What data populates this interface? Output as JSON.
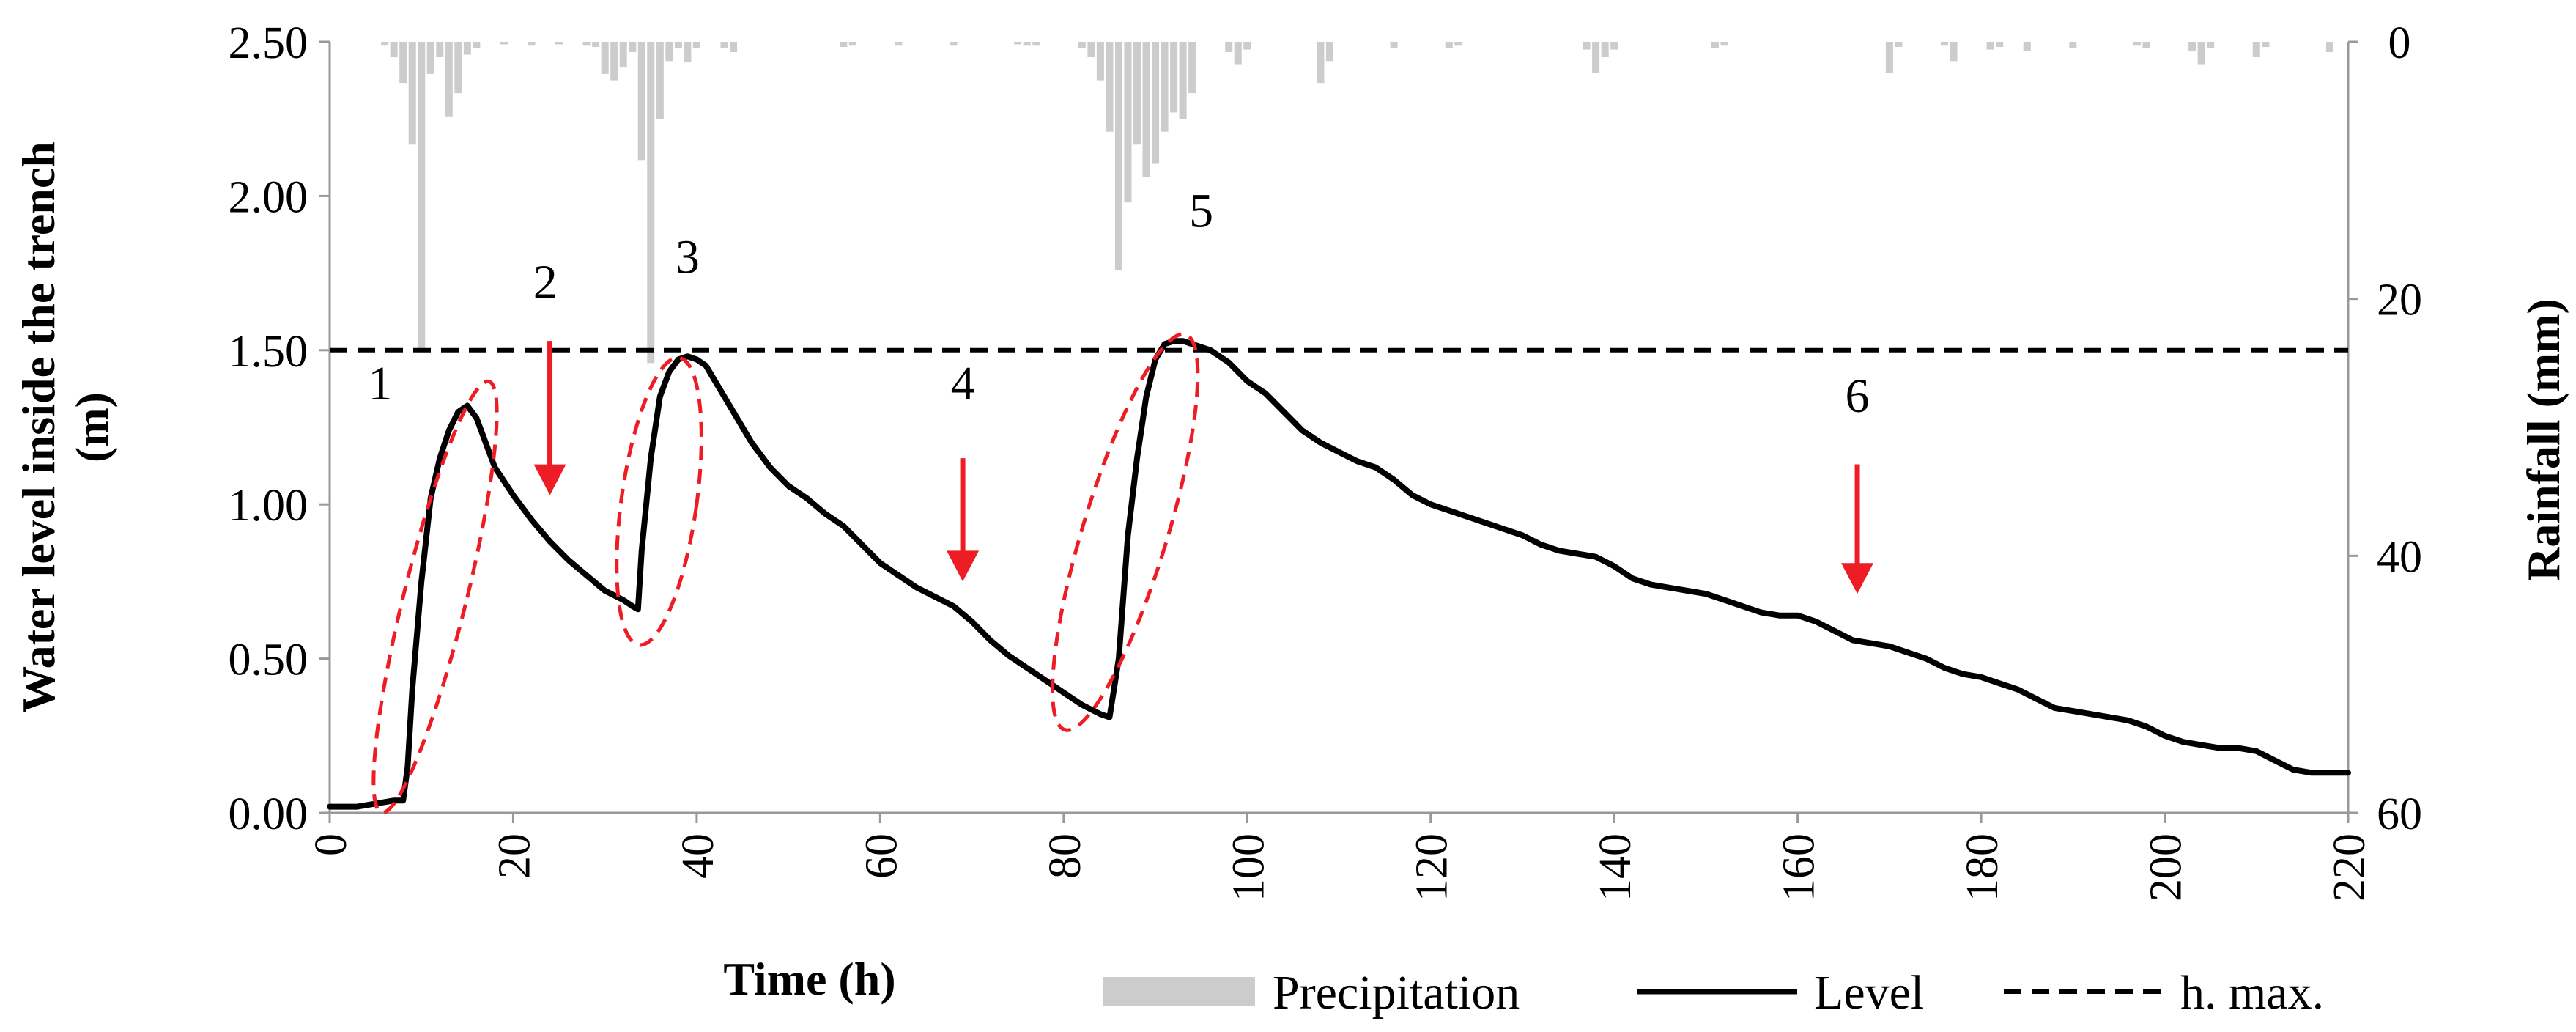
{
  "chart_data": {
    "type": "bar+line",
    "xlabel": "Time (h)",
    "ylabel_left_line1": "Water level inside the trench",
    "ylabel_left_line2": "(m)",
    "ylabel_right": "Rainfall (mm)",
    "xlim": [
      0,
      220
    ],
    "ylim_left": [
      0,
      2.5
    ],
    "ylim_right": [
      0,
      60
    ],
    "right_axis_inverted": true,
    "x_ticks": [
      "0",
      "20",
      "40",
      "60",
      "80",
      "100",
      "120",
      "140",
      "160",
      "180",
      "200",
      "220"
    ],
    "y_ticks_left": [
      "0.00",
      "0.50",
      "1.00",
      "1.50",
      "2.00",
      "2.50"
    ],
    "y_ticks_right": [
      "0",
      "20",
      "40",
      "60"
    ],
    "h_max": 1.5,
    "series": [
      {
        "name": "Level",
        "color": "#000000",
        "points": [
          [
            0,
            0.02
          ],
          [
            3,
            0.02
          ],
          [
            5,
            0.03
          ],
          [
            7,
            0.04
          ],
          [
            8,
            0.04
          ],
          [
            8.5,
            0.15
          ],
          [
            9,
            0.4
          ],
          [
            10,
            0.75
          ],
          [
            11,
            1.02
          ],
          [
            12,
            1.15
          ],
          [
            13,
            1.24
          ],
          [
            14,
            1.3
          ],
          [
            15,
            1.32
          ],
          [
            16,
            1.28
          ],
          [
            17,
            1.2
          ],
          [
            18,
            1.12
          ],
          [
            20,
            1.03
          ],
          [
            22,
            0.95
          ],
          [
            24,
            0.88
          ],
          [
            26,
            0.82
          ],
          [
            28,
            0.77
          ],
          [
            30,
            0.72
          ],
          [
            32,
            0.69
          ],
          [
            33,
            0.67
          ],
          [
            33.6,
            0.66
          ],
          [
            34,
            0.85
          ],
          [
            35,
            1.15
          ],
          [
            36,
            1.35
          ],
          [
            37,
            1.43
          ],
          [
            38,
            1.47
          ],
          [
            39,
            1.48
          ],
          [
            40,
            1.47
          ],
          [
            41,
            1.45
          ],
          [
            42,
            1.4
          ],
          [
            44,
            1.3
          ],
          [
            46,
            1.2
          ],
          [
            48,
            1.12
          ],
          [
            50,
            1.06
          ],
          [
            52,
            1.02
          ],
          [
            54,
            0.97
          ],
          [
            56,
            0.93
          ],
          [
            58,
            0.87
          ],
          [
            60,
            0.81
          ],
          [
            62,
            0.77
          ],
          [
            64,
            0.73
          ],
          [
            66,
            0.7
          ],
          [
            68,
            0.67
          ],
          [
            70,
            0.62
          ],
          [
            72,
            0.56
          ],
          [
            74,
            0.51
          ],
          [
            76,
            0.47
          ],
          [
            78,
            0.43
          ],
          [
            80,
            0.39
          ],
          [
            82,
            0.35
          ],
          [
            84,
            0.32
          ],
          [
            85,
            0.31
          ],
          [
            86,
            0.5
          ],
          [
            87,
            0.9
          ],
          [
            88,
            1.15
          ],
          [
            89,
            1.35
          ],
          [
            90,
            1.47
          ],
          [
            91,
            1.52
          ],
          [
            92,
            1.53
          ],
          [
            93,
            1.53
          ],
          [
            94,
            1.52
          ],
          [
            96,
            1.5
          ],
          [
            98,
            1.46
          ],
          [
            100,
            1.4
          ],
          [
            102,
            1.36
          ],
          [
            104,
            1.3
          ],
          [
            106,
            1.24
          ],
          [
            108,
            1.2
          ],
          [
            110,
            1.17
          ],
          [
            112,
            1.14
          ],
          [
            114,
            1.12
          ],
          [
            116,
            1.08
          ],
          [
            118,
            1.03
          ],
          [
            120,
            1.0
          ],
          [
            122,
            0.98
          ],
          [
            124,
            0.96
          ],
          [
            126,
            0.94
          ],
          [
            128,
            0.92
          ],
          [
            130,
            0.9
          ],
          [
            132,
            0.87
          ],
          [
            134,
            0.85
          ],
          [
            136,
            0.84
          ],
          [
            138,
            0.83
          ],
          [
            140,
            0.8
          ],
          [
            142,
            0.76
          ],
          [
            144,
            0.74
          ],
          [
            146,
            0.73
          ],
          [
            148,
            0.72
          ],
          [
            150,
            0.71
          ],
          [
            152,
            0.69
          ],
          [
            154,
            0.67
          ],
          [
            156,
            0.65
          ],
          [
            158,
            0.64
          ],
          [
            160,
            0.64
          ],
          [
            162,
            0.62
          ],
          [
            164,
            0.59
          ],
          [
            166,
            0.56
          ],
          [
            168,
            0.55
          ],
          [
            170,
            0.54
          ],
          [
            172,
            0.52
          ],
          [
            174,
            0.5
          ],
          [
            176,
            0.47
          ],
          [
            178,
            0.45
          ],
          [
            180,
            0.44
          ],
          [
            182,
            0.42
          ],
          [
            184,
            0.4
          ],
          [
            186,
            0.37
          ],
          [
            188,
            0.34
          ],
          [
            190,
            0.33
          ],
          [
            192,
            0.32
          ],
          [
            194,
            0.31
          ],
          [
            196,
            0.3
          ],
          [
            198,
            0.28
          ],
          [
            200,
            0.25
          ],
          [
            202,
            0.23
          ],
          [
            204,
            0.22
          ],
          [
            206,
            0.21
          ],
          [
            208,
            0.21
          ],
          [
            210,
            0.2
          ],
          [
            212,
            0.17
          ],
          [
            214,
            0.14
          ],
          [
            216,
            0.13
          ],
          [
            218,
            0.13
          ],
          [
            220,
            0.13
          ]
        ]
      },
      {
        "name": "Precipitation",
        "color": "#cccccc",
        "bars": [
          [
            6,
            0.3
          ],
          [
            7,
            1.2
          ],
          [
            8,
            3.2
          ],
          [
            9,
            8
          ],
          [
            10,
            24
          ],
          [
            11,
            2.5
          ],
          [
            12,
            1.2
          ],
          [
            13,
            5.8
          ],
          [
            14,
            4
          ],
          [
            15,
            1
          ],
          [
            16,
            0.5
          ],
          [
            19,
            0.2
          ],
          [
            22,
            0.3
          ],
          [
            25,
            0.2
          ],
          [
            28,
            0.3
          ],
          [
            29,
            0.4
          ],
          [
            30,
            2.5
          ],
          [
            31,
            3
          ],
          [
            32,
            2
          ],
          [
            33,
            0.8
          ],
          [
            34,
            9.2
          ],
          [
            35,
            25
          ],
          [
            36,
            6
          ],
          [
            37,
            1.5
          ],
          [
            38,
            0.5
          ],
          [
            39,
            1.6
          ],
          [
            40,
            0.5
          ],
          [
            43,
            0.5
          ],
          [
            44,
            0.8
          ],
          [
            56,
            0.4
          ],
          [
            57,
            0.3
          ],
          [
            62,
            0.3
          ],
          [
            68,
            0.3
          ],
          [
            75,
            0.2
          ],
          [
            76,
            0.3
          ],
          [
            77,
            0.3
          ],
          [
            82,
            0.5
          ],
          [
            83,
            1.2
          ],
          [
            84,
            3
          ],
          [
            85,
            7
          ],
          [
            86,
            17.8
          ],
          [
            87,
            12.5
          ],
          [
            88,
            8
          ],
          [
            89,
            10.5
          ],
          [
            90,
            9.5
          ],
          [
            91,
            7
          ],
          [
            92,
            5.5
          ],
          [
            93,
            6
          ],
          [
            94,
            4
          ],
          [
            98,
            0.8
          ],
          [
            99,
            1.8
          ],
          [
            100,
            0.6
          ],
          [
            108,
            3.2
          ],
          [
            109,
            1.5
          ],
          [
            116,
            0.5
          ],
          [
            122,
            0.5
          ],
          [
            123,
            0.3
          ],
          [
            137,
            0.6
          ],
          [
            138,
            2.4
          ],
          [
            139,
            1.2
          ],
          [
            140,
            0.6
          ],
          [
            151,
            0.5
          ],
          [
            152,
            0.3
          ],
          [
            170,
            2.4
          ],
          [
            171,
            0.4
          ],
          [
            176,
            0.3
          ],
          [
            177,
            1.5
          ],
          [
            181,
            0.6
          ],
          [
            182,
            0.4
          ],
          [
            185,
            0.7
          ],
          [
            190,
            0.5
          ],
          [
            197,
            0.3
          ],
          [
            198,
            0.5
          ],
          [
            203,
            0.7
          ],
          [
            204,
            1.8
          ],
          [
            205,
            0.5
          ],
          [
            210,
            1.2
          ],
          [
            211,
            0.4
          ],
          [
            218,
            0.8
          ]
        ]
      },
      {
        "name": "h. max.",
        "color": "#000000",
        "value": 1.5
      }
    ],
    "annotations": [
      {
        "label": "1",
        "x": 5.5,
        "y": 1.34
      },
      {
        "label": "2",
        "x": 23.5,
        "y": 1.67
      },
      {
        "label": "3",
        "x": 39,
        "y": 1.75
      },
      {
        "label": "4",
        "x": 69,
        "y": 1.34
      },
      {
        "label": "5",
        "x": 95,
        "y": 1.9
      },
      {
        "label": "6",
        "x": 166.5,
        "y": 1.3
      }
    ],
    "arrows": [
      {
        "x": 24,
        "y_from": 1.53,
        "y_to": 1.03
      },
      {
        "x": 69,
        "y_from": 1.15,
        "y_to": 0.75
      },
      {
        "x": 166.5,
        "y_from": 1.13,
        "y_to": 0.71
      }
    ],
    "ellipses": [
      {
        "cx": 11.5,
        "cy": 0.7,
        "rx": 3.4,
        "ry": 0.72,
        "angle_deg": 14
      },
      {
        "cx": 35.9,
        "cy": 1.01,
        "rx": 4.1,
        "ry": 0.47,
        "angle_deg": 8
      },
      {
        "cx": 86.7,
        "cy": 0.91,
        "rx": 4.6,
        "ry": 0.67,
        "angle_deg": 17
      }
    ],
    "legend": {
      "position": "bottom-right",
      "items": [
        "Precipitation",
        "Level",
        "h. max."
      ]
    },
    "annotation_color": "#ee1c24"
  }
}
